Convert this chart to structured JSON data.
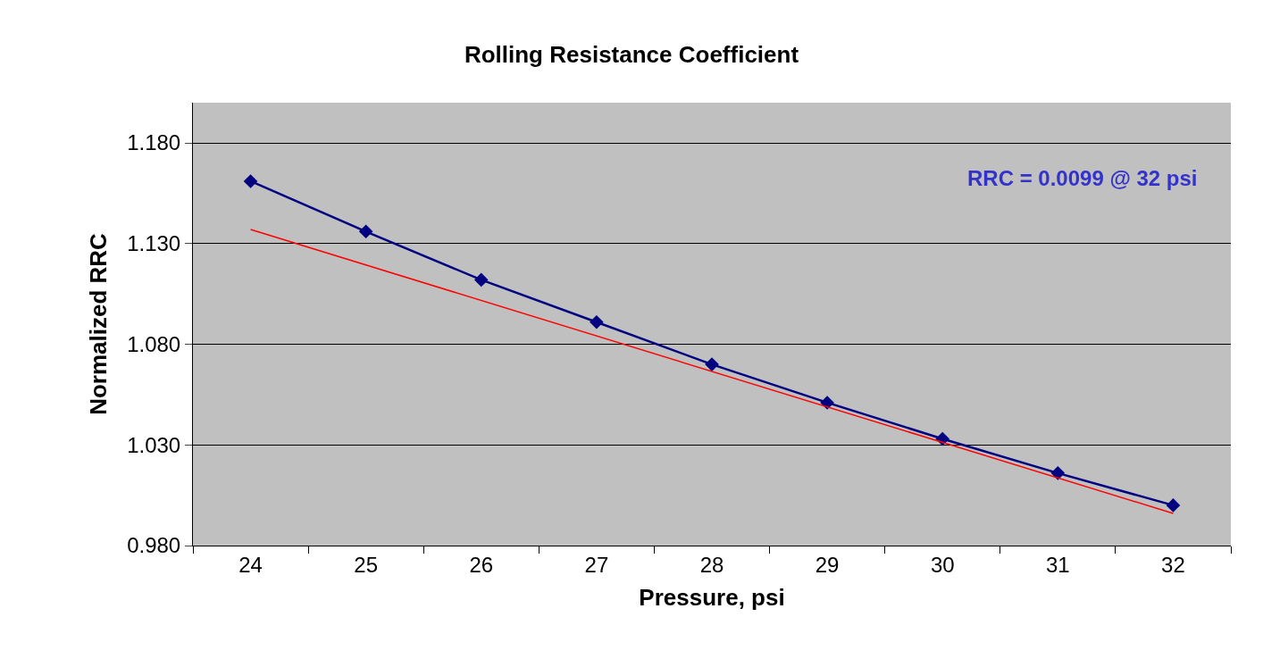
{
  "chart_data": {
    "type": "line",
    "title": "Rolling Resistance Coefficient",
    "xlabel": "Pressure, psi",
    "ylabel": "Normalized RRC",
    "x": [
      24,
      25,
      26,
      27,
      28,
      29,
      30,
      31,
      32
    ],
    "series": [
      {
        "color": "#000080",
        "values": [
          1.161,
          1.136,
          1.112,
          1.091,
          1.07,
          1.051,
          1.033,
          1.016,
          1.0
        ],
        "marker": "diamond"
      },
      {
        "type": "line",
        "color": "#ff0000",
        "x": [
          24,
          32
        ],
        "values": [
          1.137,
          0.996
        ],
        "marker": "none"
      }
    ],
    "xlim": [
      23.5,
      32.5
    ],
    "xticks": [
      24,
      25,
      26,
      27,
      28,
      29,
      30,
      31,
      32
    ],
    "ylim": [
      0.98,
      1.2
    ],
    "yticks": [
      {
        "value": 0.98,
        "label": "0.980"
      },
      {
        "value": 1.03,
        "label": "1.030"
      },
      {
        "value": 1.08,
        "label": "1.080"
      },
      {
        "value": 1.13,
        "label": "1.130"
      },
      {
        "value": 1.18,
        "label": "1.180"
      }
    ],
    "grid": "y",
    "legend": false,
    "annotations": [
      "RRC = 0.0099 @ 32 psi"
    ]
  }
}
